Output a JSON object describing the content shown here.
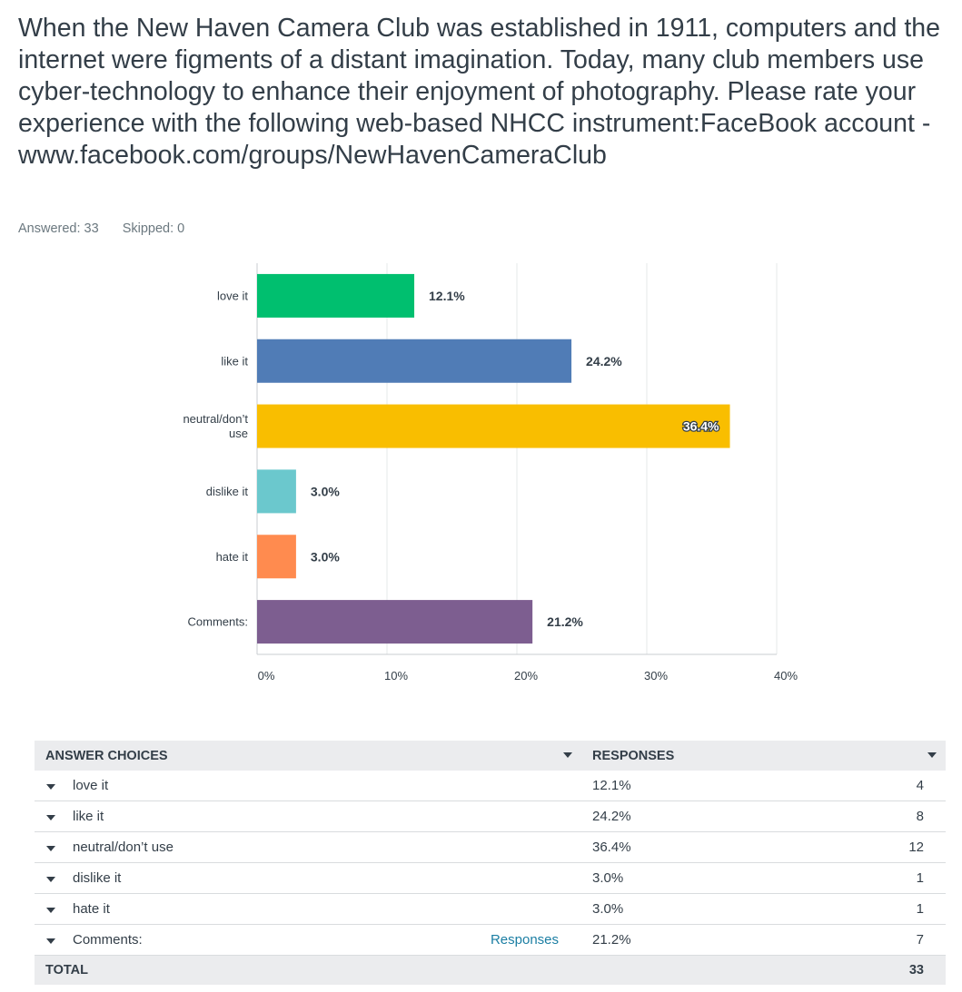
{
  "question": {
    "text": "When the New Haven Camera Club was established in 1911, computers and the internet were figments of a distant imagination. Today, many club members use cyber-technology to enhance their enjoyment of photography. Please rate your experience with the following web-based NHCC instrument:FaceBook account - www.facebook.com/groups/NewHavenCameraClub"
  },
  "stats": {
    "answered": "Answered: 33",
    "skipped": "Skipped: 0"
  },
  "chart_data": {
    "type": "bar",
    "orientation": "horizontal",
    "categories": [
      "love it",
      "like it",
      "neutral/don’t use",
      "dislike it",
      "hate it",
      "Comments:"
    ],
    "category_lines": [
      [
        "love it"
      ],
      [
        "like it"
      ],
      [
        "neutral/don’t",
        "use"
      ],
      [
        "dislike it"
      ],
      [
        "hate it"
      ],
      [
        "Comments:"
      ]
    ],
    "values": [
      12.1,
      24.2,
      36.4,
      3.0,
      3.0,
      21.2
    ],
    "data_labels": [
      "12.1%",
      "24.2%",
      "36.4%",
      "3.0%",
      "3.0%",
      "21.2%"
    ],
    "colors": [
      "#00bf6f",
      "#507cb6",
      "#f9be00",
      "#6bc8cd",
      "#ff8b4f",
      "#7d5e90"
    ],
    "xlim": [
      0,
      40
    ],
    "x_ticks": [
      0,
      10,
      20,
      30,
      40
    ],
    "x_tick_labels": [
      "0%",
      "10%",
      "20%",
      "30%",
      "40%"
    ],
    "grid": true,
    "legend": "none"
  },
  "table": {
    "headers": {
      "choices": "ANSWER CHOICES",
      "responses": "RESPONSES"
    },
    "rows": [
      {
        "label": "love it",
        "pct": "12.1%",
        "count": "4",
        "link": ""
      },
      {
        "label": "like it",
        "pct": "24.2%",
        "count": "8",
        "link": ""
      },
      {
        "label": "neutral/don’t use",
        "pct": "36.4%",
        "count": "12",
        "link": ""
      },
      {
        "label": "dislike it",
        "pct": "3.0%",
        "count": "1",
        "link": ""
      },
      {
        "label": "hate it",
        "pct": "3.0%",
        "count": "1",
        "link": ""
      },
      {
        "label": "Comments:",
        "pct": "21.2%",
        "count": "7",
        "link": "Responses"
      }
    ],
    "total": {
      "label": "TOTAL",
      "count": "33"
    }
  }
}
